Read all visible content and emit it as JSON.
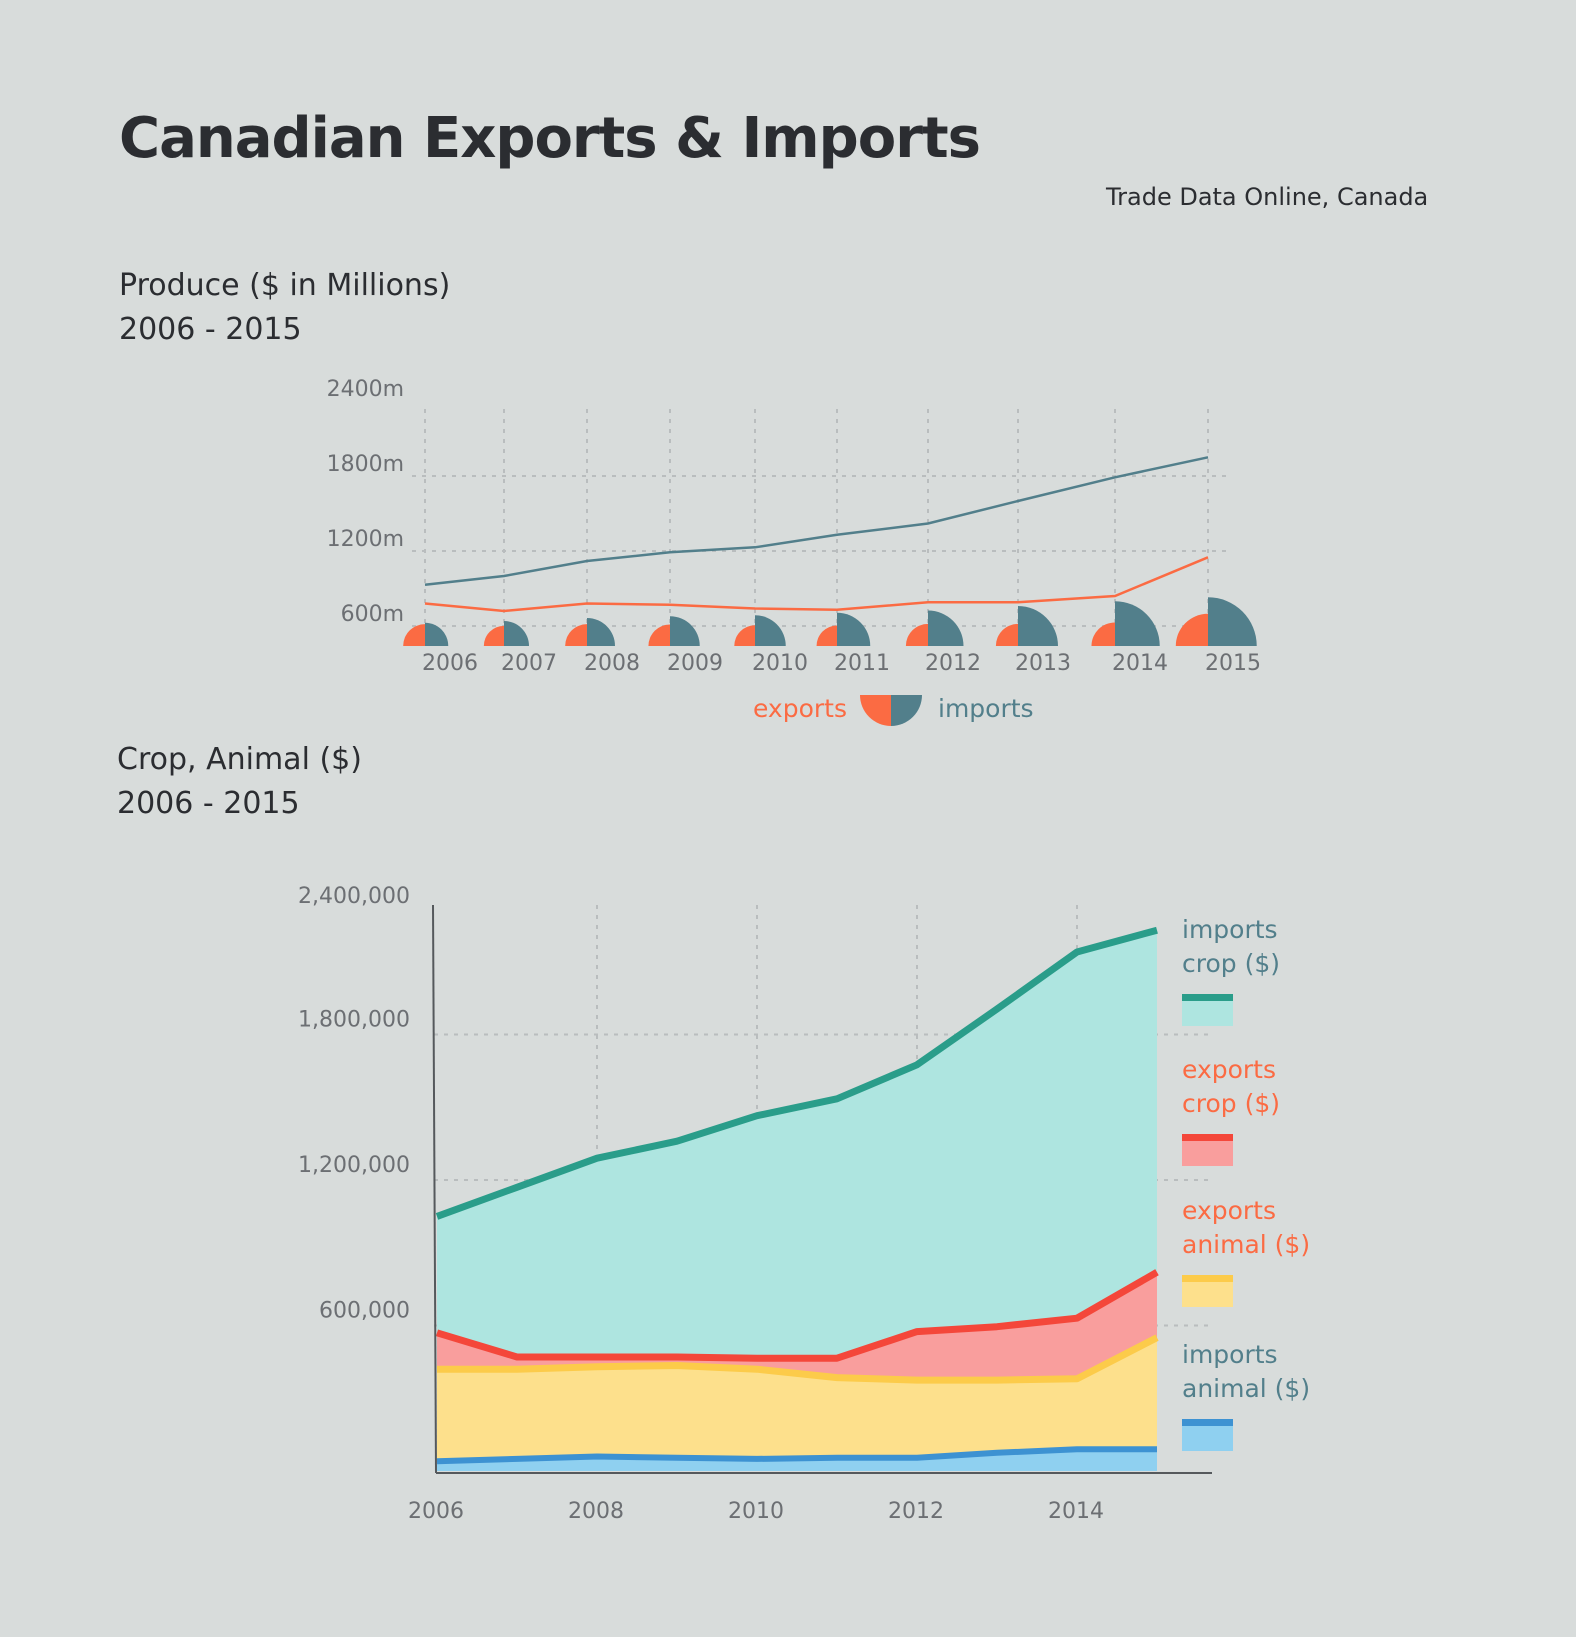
{
  "title": "Canadian Exports & Imports",
  "source": "Trade Data Online, Canada",
  "colors": {
    "background": "#d8dcdb",
    "exports": "#fb6b43",
    "imports": "#527f8b",
    "imports_crop_line": "#2a9d8a",
    "imports_crop_fill": "#aee5e0",
    "exports_crop_line": "#f4473a",
    "exports_crop_fill": "#f99e9d",
    "exports_animal_line": "#fccb4a",
    "exports_animal_fill": "#fde08c",
    "imports_animal_line": "#3d92d2",
    "imports_animal_fill": "#8fd0f0"
  },
  "chart1": {
    "heading_line1": "Produce ($ in Millions)",
    "heading_line2": "2006 - 2015",
    "legend_exports": "exports",
    "legend_imports": "imports"
  },
  "chart2": {
    "heading_line1": "Crop, Animal ($)",
    "heading_line2": "2006 - 2015",
    "legend": [
      {
        "line1": "imports",
        "line2": "crop ($)"
      },
      {
        "line1": "exports",
        "line2": "crop ($)"
      },
      {
        "line1": "exports",
        "line2": "animal ($)"
      },
      {
        "line1": "imports",
        "line2": "animal ($)"
      }
    ]
  },
  "chart_data": [
    {
      "type": "line",
      "title": "Produce ($ in Millions)",
      "subtitle": "2006 - 2015",
      "x": [
        "2006",
        "2007",
        "2008",
        "2009",
        "2010",
        "2011",
        "2012",
        "2013",
        "2014",
        "2015"
      ],
      "ytick_labels": [
        "600m",
        "1200m",
        "1800m",
        "2400m"
      ],
      "ylim": [
        440,
        2400
      ],
      "grid": true,
      "legend_position": "bottom",
      "series": [
        {
          "name": "exports",
          "values": [
            780,
            720,
            780,
            770,
            740,
            730,
            790,
            790,
            840,
            1150
          ]
        },
        {
          "name": "imports",
          "values": [
            930,
            1000,
            1120,
            1190,
            1230,
            1330,
            1420,
            1600,
            1790,
            1950
          ]
        }
      ]
    },
    {
      "type": "area",
      "title": "Crop, Animal ($)",
      "subtitle": "2006 - 2015",
      "x": [
        2006,
        2007,
        2008,
        2009,
        2010,
        2011,
        2012,
        2013,
        2014,
        2015
      ],
      "xtick_labels": [
        "2006",
        "2008",
        "2010",
        "2012",
        "2014"
      ],
      "ytick_labels": [
        "600,000",
        "1,200,000",
        "1,800,000",
        "2,400,000"
      ],
      "ylim": [
        0,
        2400000
      ],
      "stacked": true,
      "grid": true,
      "legend_position": "right",
      "series": [
        {
          "name": "imports animal ($)",
          "values": [
            40000,
            50000,
            60000,
            55000,
            50000,
            55000,
            55000,
            75000,
            90000,
            90000
          ]
        },
        {
          "name": "exports animal ($)",
          "values": [
            380000,
            370000,
            370000,
            380000,
            370000,
            330000,
            320000,
            300000,
            290000,
            460000
          ]
        },
        {
          "name": "exports crop ($)",
          "values": [
            150000,
            50000,
            40000,
            35000,
            45000,
            80000,
            200000,
            220000,
            250000,
            270000
          ]
        },
        {
          "name": "imports crop ($)",
          "values": [
            480000,
            700000,
            820000,
            890000,
            1000000,
            1070000,
            1100000,
            1310000,
            1510000,
            1410000
          ]
        }
      ]
    }
  ]
}
